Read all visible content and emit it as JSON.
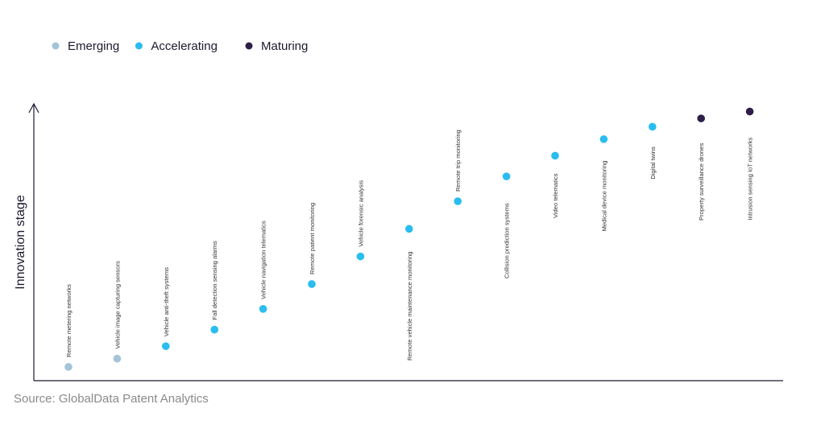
{
  "source": "Source: GlobalData Patent Analytics",
  "chart_data": {
    "type": "scatter",
    "ylabel": "Innovation stage",
    "legend": [
      {
        "name": "Emerging",
        "color": "#a3c4d9"
      },
      {
        "name": "Accelerating",
        "color": "#29bdf0"
      },
      {
        "name": "Maturing",
        "color": "#2d1f47"
      }
    ],
    "legend_position": "top-left",
    "grid": false,
    "points": [
      {
        "label": "Remote metering networks",
        "stage": "Emerging",
        "y": 0.05
      },
      {
        "label": "Vehicle image capturing sensors",
        "stage": "Emerging",
        "y": 0.08
      },
      {
        "label": "Vehicle anti-theft systems",
        "stage": "Accelerating",
        "y": 0.125
      },
      {
        "label": "Fall detection sensing alarms",
        "stage": "Accelerating",
        "y": 0.185
      },
      {
        "label": "Vehicle navigation telematics",
        "stage": "Accelerating",
        "y": 0.26
      },
      {
        "label": "Remote patient monitoring",
        "stage": "Accelerating",
        "y": 0.35
      },
      {
        "label": "Vehicle forensic analysis",
        "stage": "Accelerating",
        "y": 0.45
      },
      {
        "label": "Remote vehicle maintenance monitoring",
        "stage": "Accelerating",
        "y": 0.55
      },
      {
        "label": "Remote trip monitoring",
        "stage": "Accelerating",
        "y": 0.65
      },
      {
        "label": "Collision prediction systems",
        "stage": "Accelerating",
        "y": 0.74
      },
      {
        "label": "Video telematics",
        "stage": "Accelerating",
        "y": 0.815
      },
      {
        "label": "Medical device monitoring",
        "stage": "Accelerating",
        "y": 0.875
      },
      {
        "label": "Digital twins",
        "stage": "Accelerating",
        "y": 0.92
      },
      {
        "label": "Property surveillance drones",
        "stage": "Maturing",
        "y": 0.95
      },
      {
        "label": "Intrusion sensing IoT networks",
        "stage": "Maturing",
        "y": 0.975
      }
    ]
  }
}
